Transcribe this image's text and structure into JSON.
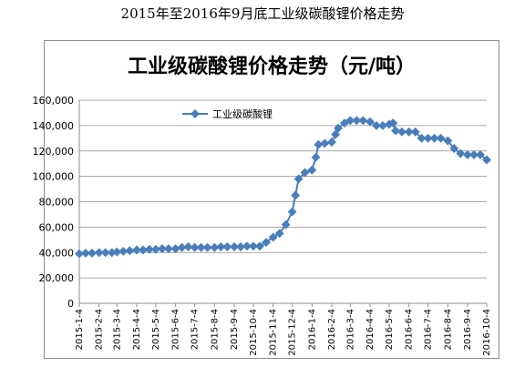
{
  "caption": "2015年至2016年9月底工业级碳酸锂价格走势",
  "chart_data": {
    "type": "line",
    "title": "工业级碳酸锂价格走势（元/吨）",
    "xlabel": "",
    "ylabel": "",
    "ylim": [
      0,
      160000
    ],
    "yticks": [
      0,
      20000,
      40000,
      60000,
      80000,
      100000,
      120000,
      140000,
      160000
    ],
    "ytick_labels": [
      "0",
      "20,000",
      "40,000",
      "60,000",
      "80,000",
      "100,000",
      "120,000",
      "140,000",
      "160,000"
    ],
    "grid": true,
    "legend_position": "top-left",
    "x_tick_labels": [
      "2015-1-4",
      "2015-2-4",
      "2015-3-4",
      "2015-4-4",
      "2015-5-4",
      "2015-6-4",
      "2015-7-4",
      "2015-8-4",
      "2015-9-4",
      "2015-10-4",
      "2015-11-4",
      "2015-12-4",
      "2016-1-4",
      "2016-2-4",
      "2016-3-4",
      "2016-4-4",
      "2016-5-4",
      "2016-6-4",
      "2016-7-4",
      "2016-8-4",
      "2016-9-4",
      "2016-10-4"
    ],
    "series": [
      {
        "name": "工业级碳酸锂",
        "color": "#4a7ebb",
        "points": [
          [
            "2015-1-4",
            39000
          ],
          [
            "2015-1-14",
            39500
          ],
          [
            "2015-1-24",
            39500
          ],
          [
            "2015-2-4",
            40000
          ],
          [
            "2015-2-14",
            40000
          ],
          [
            "2015-2-24",
            40000
          ],
          [
            "2015-3-4",
            40500
          ],
          [
            "2015-3-14",
            41000
          ],
          [
            "2015-3-24",
            41500
          ],
          [
            "2015-4-4",
            42000
          ],
          [
            "2015-4-14",
            42000
          ],
          [
            "2015-4-24",
            42500
          ],
          [
            "2015-5-4",
            42500
          ],
          [
            "2015-5-14",
            43000
          ],
          [
            "2015-5-24",
            43000
          ],
          [
            "2015-6-4",
            43000
          ],
          [
            "2015-6-14",
            44000
          ],
          [
            "2015-6-24",
            44500
          ],
          [
            "2015-7-4",
            44000
          ],
          [
            "2015-7-14",
            44000
          ],
          [
            "2015-7-24",
            44000
          ],
          [
            "2015-8-4",
            44000
          ],
          [
            "2015-8-14",
            44500
          ],
          [
            "2015-8-24",
            44500
          ],
          [
            "2015-9-4",
            44500
          ],
          [
            "2015-9-14",
            44500
          ],
          [
            "2015-9-24",
            45000
          ],
          [
            "2015-10-4",
            45000
          ],
          [
            "2015-10-14",
            45000
          ],
          [
            "2015-10-24",
            48000
          ],
          [
            "2015-11-4",
            52000
          ],
          [
            "2015-11-14",
            55000
          ],
          [
            "2015-11-24",
            62000
          ],
          [
            "2015-12-4",
            72000
          ],
          [
            "2015-12-9",
            85000
          ],
          [
            "2015-12-14",
            98000
          ],
          [
            "2015-12-24",
            103000
          ],
          [
            "2016-1-4",
            105000
          ],
          [
            "2016-1-10",
            115000
          ],
          [
            "2016-1-14",
            125000
          ],
          [
            "2016-1-24",
            126000
          ],
          [
            "2016-2-4",
            127000
          ],
          [
            "2016-2-10",
            133000
          ],
          [
            "2016-2-14",
            138000
          ],
          [
            "2016-2-24",
            142000
          ],
          [
            "2016-3-4",
            144000
          ],
          [
            "2016-3-14",
            144000
          ],
          [
            "2016-3-24",
            144000
          ],
          [
            "2016-4-4",
            143000
          ],
          [
            "2016-4-14",
            140000
          ],
          [
            "2016-4-24",
            140000
          ],
          [
            "2016-5-4",
            141000
          ],
          [
            "2016-5-10",
            142000
          ],
          [
            "2016-5-14",
            136000
          ],
          [
            "2016-5-24",
            135000
          ],
          [
            "2016-6-4",
            135000
          ],
          [
            "2016-6-14",
            135000
          ],
          [
            "2016-6-24",
            130000
          ],
          [
            "2016-7-4",
            130000
          ],
          [
            "2016-7-14",
            130000
          ],
          [
            "2016-7-24",
            130000
          ],
          [
            "2016-8-4",
            128000
          ],
          [
            "2016-8-14",
            122000
          ],
          [
            "2016-8-24",
            118000
          ],
          [
            "2016-9-4",
            117000
          ],
          [
            "2016-9-14",
            117000
          ],
          [
            "2016-9-24",
            117000
          ],
          [
            "2016-10-4",
            113000
          ]
        ]
      }
    ]
  }
}
